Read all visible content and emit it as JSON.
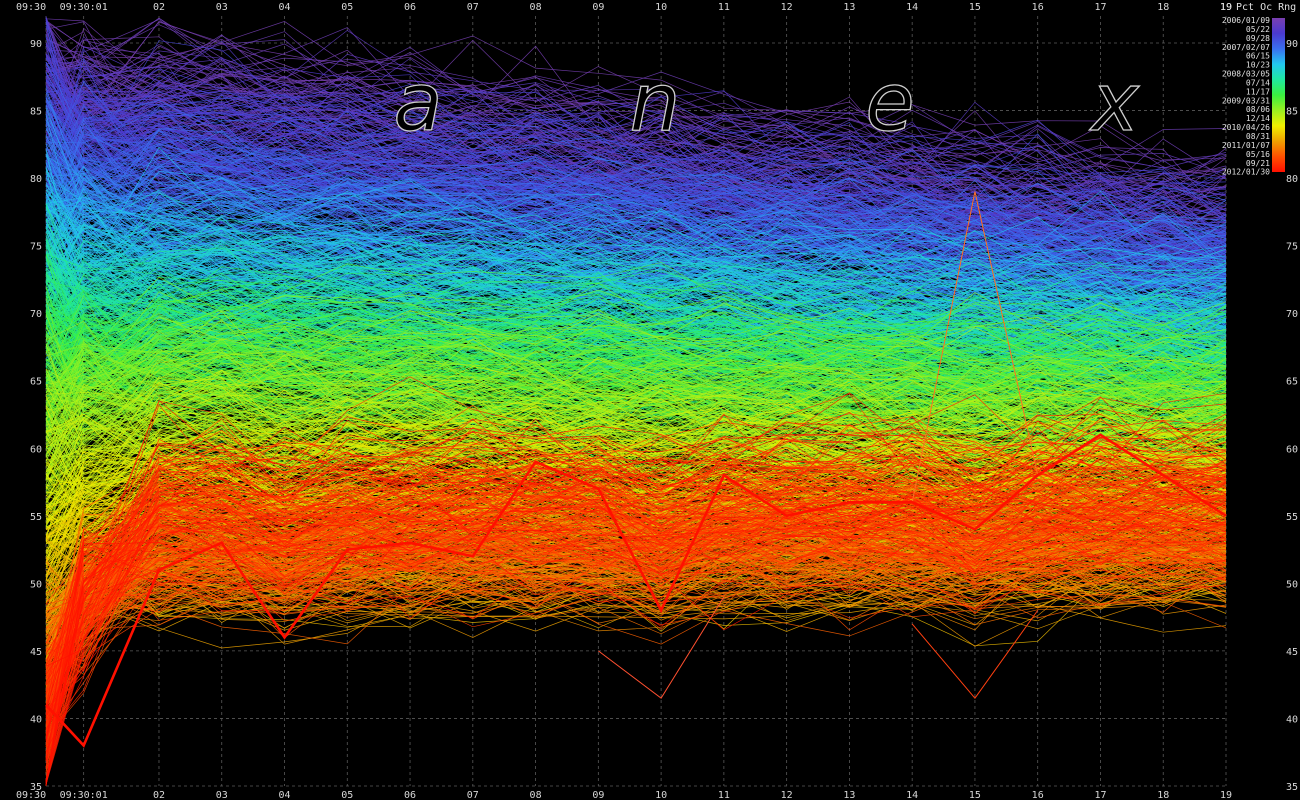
{
  "chart_data": {
    "type": "line",
    "title": "Pct Oc Rng",
    "title_prefix": "19",
    "watermark": [
      "a",
      "n",
      "e",
      "x"
    ],
    "x_ticks": [
      "09:30",
      "09:30:01",
      "02",
      "03",
      "04",
      "05",
      "06",
      "07",
      "08",
      "09",
      "10",
      "11",
      "12",
      "13",
      "14",
      "15",
      "16",
      "17",
      "18",
      "19"
    ],
    "x_tick_minutes": [
      0,
      0.6,
      1.8,
      2.8,
      3.8,
      4.8,
      5.8,
      6.8,
      7.8,
      8.8,
      9.8,
      10.8,
      11.8,
      12.8,
      13.8,
      14.8,
      15.8,
      16.8,
      17.8,
      18.8
    ],
    "ylim": [
      35,
      92
    ],
    "y_ticks": [
      35,
      40,
      45,
      50,
      55,
      60,
      65,
      70,
      75,
      80,
      85,
      90
    ],
    "grid": true,
    "legend_placement": "top-right",
    "legend_labels": [
      "2006/01/09",
      "05/22",
      "09/28",
      "2007/02/07",
      "06/15",
      "10/23",
      "2008/03/05",
      "07/14",
      "11/17",
      "2009/03/31",
      "08/06",
      "12/14",
      "2010/04/26",
      "08/31",
      "2011/01/07",
      "05/16",
      "09/21",
      "2012/01/30"
    ],
    "color_scale": [
      "#7a3fb0",
      "#4a3ad0",
      "#3a6ff0",
      "#22c8f0",
      "#20e8a0",
      "#3af040",
      "#9af020",
      "#f0f000",
      "#f0a000",
      "#ff5000",
      "#ff1000"
    ],
    "series_count": 1530,
    "series_groups": [
      {
        "name": "2006",
        "start": 89,
        "plateau": 87,
        "end": 77,
        "spread": 4.0
      },
      {
        "name": "2007",
        "start": 80,
        "plateau": 78,
        "end": 72,
        "spread": 4.0
      },
      {
        "name": "2008",
        "start": 70,
        "plateau": 69,
        "end": 66,
        "spread": 3.5
      },
      {
        "name": "2009",
        "start": 62,
        "plateau": 64,
        "end": 62,
        "spread": 4.0
      },
      {
        "name": "2010",
        "start": 46,
        "plateau": 51,
        "end": 52,
        "spread": 3.0
      },
      {
        "name": "2011",
        "start": 38,
        "plateau": 56,
        "end": 57,
        "spread": 4.5
      }
    ],
    "highlight_series": {
      "name": "2012/01/30",
      "x": [
        0,
        0.6,
        1.8,
        2.8,
        3.8,
        4.8,
        5.8,
        6.8,
        7.8,
        8.8,
        9.8,
        10.8,
        11.8,
        12.8,
        13.8,
        14.8,
        15.8,
        16.8,
        17.8,
        18.8
      ],
      "y": [
        41,
        38,
        51,
        53,
        46,
        52.5,
        53,
        52,
        59,
        57,
        48,
        58,
        55,
        56,
        56,
        54,
        58,
        61,
        58,
        55
      ],
      "color": "#ff1000"
    },
    "outliers": [
      {
        "x": [
          13.8,
          14.8,
          15.8
        ],
        "y": [
          56,
          79,
          58
        ],
        "color": "#ff7020"
      },
      {
        "x": [
          8.8,
          9.8,
          10.8
        ],
        "y": [
          45,
          41.5,
          49
        ],
        "color": "#ff5030"
      },
      {
        "x": [
          13.8,
          14.8,
          15.8
        ],
        "y": [
          47,
          41.5,
          48
        ],
        "color": "#ff4010"
      }
    ]
  }
}
